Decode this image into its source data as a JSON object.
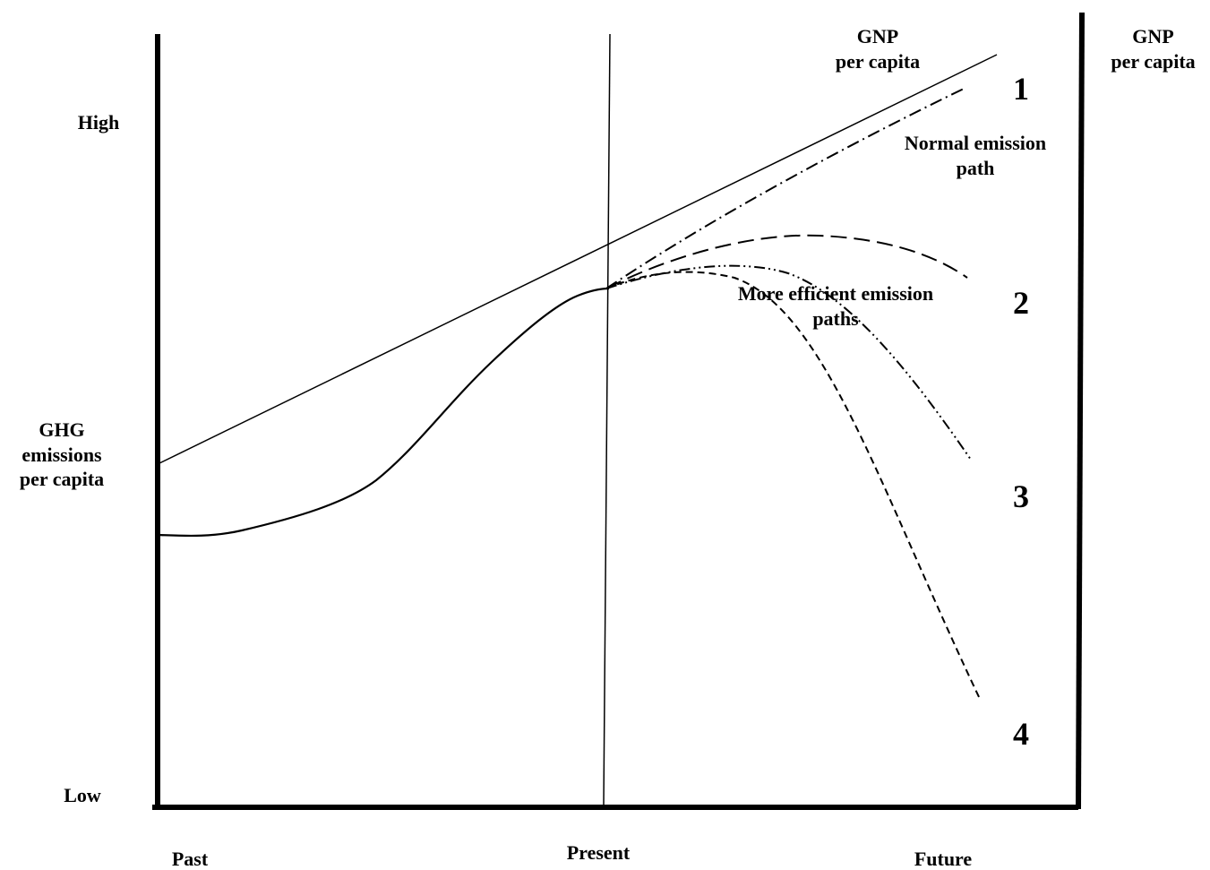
{
  "labels": {
    "high": "High",
    "low": "Low",
    "y_axis_line1": "GHG",
    "y_axis_line2": "emissions",
    "y_axis_line3": "per capita",
    "gnp_inner_line1": "GNP",
    "gnp_inner_line2": "per capita",
    "gnp_right_line1": "GNP",
    "gnp_right_line2": "per capita",
    "normal_path_line1": "Normal emission",
    "normal_path_line2": "path",
    "efficient_paths_line1": "More efficient emission",
    "efficient_paths_line2": "paths",
    "x_past": "Past",
    "x_present": "Present",
    "x_future": "Future"
  },
  "path_numbers": [
    "1",
    "2",
    "3",
    "4"
  ],
  "colors": {
    "ink": "#000000",
    "background": "#ffffff"
  }
}
